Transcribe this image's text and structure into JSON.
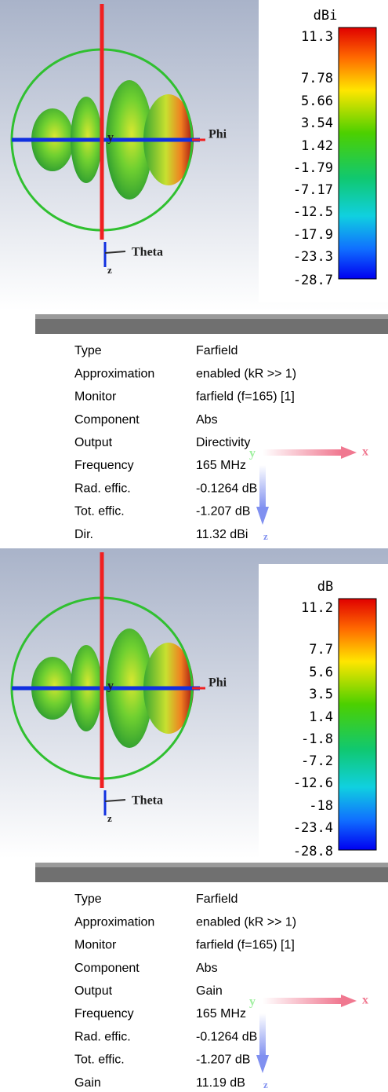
{
  "panels": [
    {
      "colorbar": {
        "unit": "dBi",
        "labels": [
          "11.3",
          "7.78",
          "5.66",
          "3.54",
          "1.42",
          "-1.79",
          "-7.17",
          "-12.5",
          "-17.9",
          "-23.3",
          "-28.7"
        ]
      },
      "axes": {
        "y": "y",
        "phi": "Phi",
        "theta": "Theta",
        "z": "z"
      },
      "gizmo": {
        "x": "x",
        "y": "y",
        "z": "z"
      },
      "table": {
        "rows": [
          [
            "Type",
            "Farfield"
          ],
          [
            "Approximation",
            "enabled (kR >> 1)"
          ],
          [
            "Monitor",
            "farfield (f=165) [1]"
          ],
          [
            "Component",
            "Abs"
          ],
          [
            "Output",
            "Directivity"
          ],
          [
            "Frequency",
            "165 MHz"
          ],
          [
            "Rad. effic.",
            "-0.1264 dB"
          ],
          [
            "Tot. effic.",
            "-1.207 dB"
          ],
          [
            "Dir.",
            "11.32 dBi"
          ]
        ]
      }
    },
    {
      "colorbar": {
        "unit": "dB",
        "labels": [
          "11.2",
          "7.7",
          "5.6",
          "3.5",
          "1.4",
          "-1.8",
          "-7.2",
          "-12.6",
          "-18",
          "-23.4",
          "-28.8"
        ]
      },
      "axes": {
        "y": "y",
        "phi": "Phi",
        "theta": "Theta",
        "z": "z"
      },
      "gizmo": {
        "x": "x",
        "y": "y",
        "z": "z"
      },
      "table": {
        "rows": [
          [
            "Type",
            "Farfield"
          ],
          [
            "Approximation",
            "enabled (kR >> 1)"
          ],
          [
            "Monitor",
            "farfield (f=165) [1]"
          ],
          [
            "Component",
            "Abs"
          ],
          [
            "Output",
            "Gain"
          ],
          [
            "Frequency",
            "165 MHz"
          ],
          [
            "Rad. effic.",
            "-0.1264 dB"
          ],
          [
            "Tot. effic.",
            "-1.207 dB"
          ],
          [
            "Gain",
            "11.19 dB"
          ]
        ]
      }
    }
  ]
}
